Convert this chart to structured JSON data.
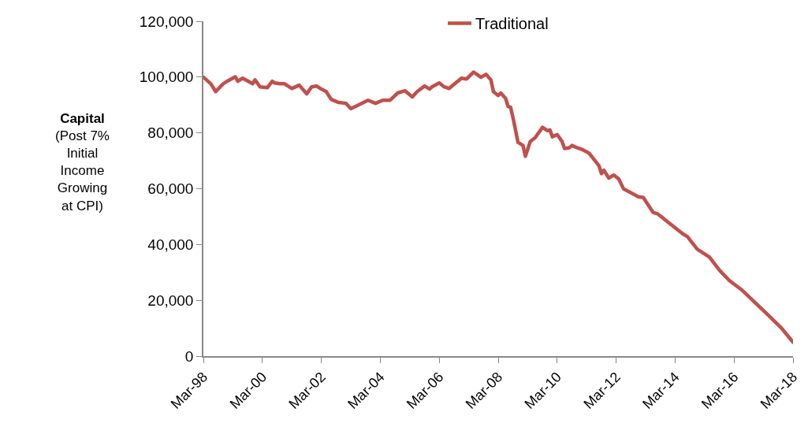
{
  "chart_data": {
    "type": "line",
    "ylabel": "Capital\n(Post 7%\nInitial\nIncome\nGrowing\nat CPI)",
    "legend": "top",
    "grid": false,
    "marker": "none",
    "line_style": "solid",
    "x": [
      "1998-03",
      "1998-06",
      "1998-08",
      "1998-11",
      "1999-01",
      "1999-04",
      "1999-05",
      "1999-07",
      "1999-11",
      "1999-12",
      "2000-02",
      "2000-05",
      "2000-07",
      "2000-08",
      "2000-10",
      "2000-12",
      "2001-03",
      "2001-06",
      "2001-09",
      "2001-11",
      "2002-01",
      "2002-03",
      "2002-05",
      "2002-07",
      "2002-10",
      "2003-01",
      "2003-03",
      "2003-05",
      "2003-10",
      "2004-01",
      "2004-04",
      "2004-07",
      "2004-10",
      "2005-01",
      "2005-04",
      "2005-06",
      "2005-09",
      "2005-11",
      "2005-12",
      "2006-03",
      "2006-05",
      "2006-07",
      "2006-12",
      "2007-02",
      "2007-05",
      "2007-08",
      "2007-10",
      "2007-12",
      "2008-01",
      "2008-03",
      "2008-04",
      "2008-06",
      "2008-07",
      "2008-08",
      "2008-09",
      "2008-11",
      "2009-01",
      "2009-02",
      "2009-04",
      "2009-06",
      "2009-09",
      "2009-11",
      "2009-12",
      "2010-01",
      "2010-03",
      "2010-05",
      "2010-06",
      "2010-08",
      "2010-09",
      "2010-11",
      "2011-01",
      "2011-04",
      "2011-06",
      "2011-08",
      "2011-09",
      "2011-10",
      "2011-12",
      "2012-02",
      "2012-04",
      "2012-06",
      "2012-09",
      "2012-12",
      "2013-02",
      "2013-06",
      "2013-08",
      "2013-12",
      "2014-06",
      "2014-08",
      "2014-12",
      "2015-05",
      "2015-09",
      "2016-01",
      "2016-06",
      "2016-11",
      "2017-04",
      "2017-10",
      "2018-03"
    ],
    "series": [
      {
        "name": "Traditional",
        "color": "#c0504d",
        "values": [
          100000,
          97600,
          94800,
          97600,
          98700,
          100100,
          98500,
          99600,
          97600,
          99000,
          96500,
          96200,
          98500,
          97900,
          97600,
          97600,
          95900,
          97100,
          94000,
          96500,
          96800,
          95700,
          94800,
          92000,
          90900,
          90600,
          88700,
          89500,
          91700,
          90600,
          91700,
          91700,
          94300,
          95100,
          92900,
          94800,
          96800,
          95700,
          96500,
          97900,
          96500,
          95900,
          99600,
          99300,
          101800,
          99900,
          101000,
          99000,
          94800,
          93400,
          94300,
          92300,
          89500,
          89200,
          85300,
          76600,
          75500,
          71600,
          76900,
          78300,
          82000,
          80800,
          81100,
          78600,
          79400,
          76900,
          74400,
          74700,
          75500,
          74700,
          74100,
          72700,
          70500,
          68200,
          65400,
          66600,
          63800,
          64900,
          63500,
          59900,
          58500,
          57100,
          56800,
          51500,
          50900,
          48100,
          43900,
          42800,
          38300,
          35500,
          30800,
          27100,
          23800,
          19600,
          15400,
          10300,
          5000
        ]
      }
    ],
    "xlim": [
      "1998-03",
      "2018-03"
    ],
    "xticks": [
      {
        "value": "1998-03",
        "label": "Mar-98"
      },
      {
        "value": "2000-03",
        "label": "Mar-00"
      },
      {
        "value": "2002-03",
        "label": "Mar-02"
      },
      {
        "value": "2004-03",
        "label": "Mar-04"
      },
      {
        "value": "2006-03",
        "label": "Mar-06"
      },
      {
        "value": "2008-03",
        "label": "Mar-08"
      },
      {
        "value": "2010-03",
        "label": "Mar-10"
      },
      {
        "value": "2012-03",
        "label": "Mar-12"
      },
      {
        "value": "2014-03",
        "label": "Mar-14"
      },
      {
        "value": "2016-03",
        "label": "Mar-16"
      },
      {
        "value": "2018-03",
        "label": "Mar-18"
      }
    ],
    "ylim": [
      0,
      120000
    ],
    "yticks": [
      0,
      {
        "value": 20000,
        "label": "20,000"
      },
      {
        "value": 40000,
        "label": "40,000"
      },
      {
        "value": 60000,
        "label": "60,000"
      },
      {
        "value": 80000,
        "label": "80,000"
      },
      {
        "value": 100000,
        "label": "100,000"
      },
      {
        "value": 120000,
        "label": "120,000"
      }
    ]
  }
}
